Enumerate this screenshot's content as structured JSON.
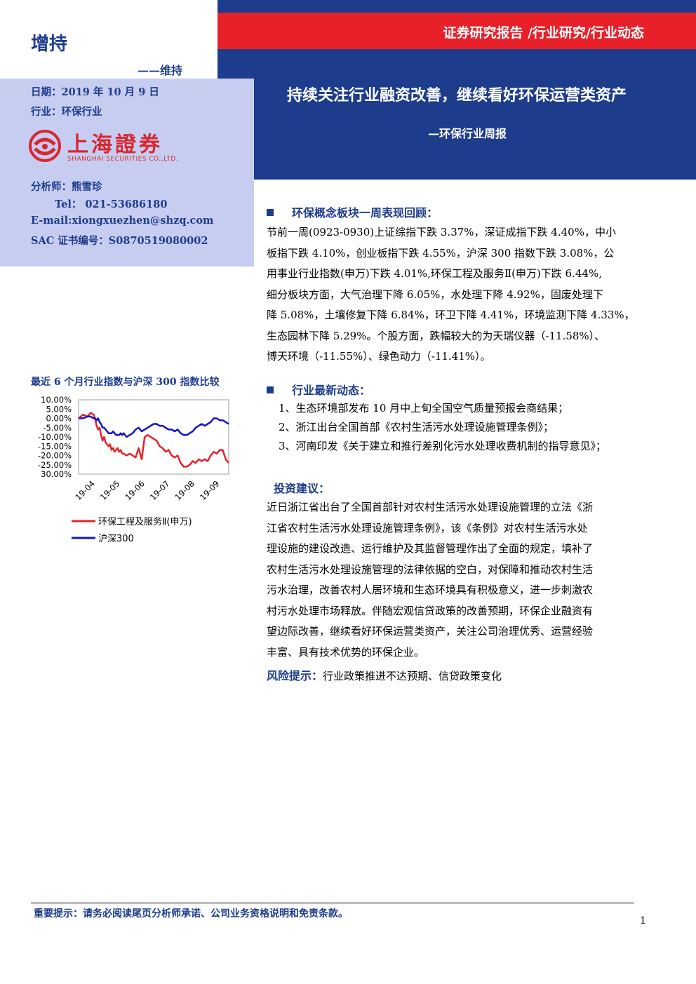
{
  "header": {
    "rating": "增持",
    "rating_sub": "——维持",
    "category": "证券研究报告 /行业研究/行业动态",
    "title": "持续关注行业融资改善，继续看好环保运营类资产",
    "subtitle": "—环保行业周报"
  },
  "info": {
    "date": "日期：2019 年 10 月 9 日",
    "industry": "行业：环保行业",
    "analyst": "分析师：熊雪珍",
    "tel": "Tel： 021-53686180",
    "email": "E-mail:xiongxuezhen@shzq.com",
    "sac": "SAC 证书编号：S0870519080002"
  },
  "logo": {
    "cn": "上海證券",
    "en": "SHANGHAI SECURITIES CO.,LTD."
  },
  "colors": {
    "brand_blue": "#1e3c8c",
    "brand_red": "#e8202a",
    "panel": "#c7cdf1",
    "series_red": "#e8202a",
    "series_blue": "#1414c8"
  },
  "chart_title": "最近 6 个月行业指数与沪深 300 指数比较",
  "chart_data": {
    "type": "line",
    "y_ticks": [
      "10.00%",
      "5.00%",
      "0.00%",
      "-5.00%",
      "-10.00%",
      "-15.00%",
      "-20.00%",
      "-25.00%",
      "30.00%"
    ],
    "x_ticks": [
      "19-04",
      "19-05",
      "19-06",
      "19-07",
      "19-08",
      "19-09"
    ],
    "ylim": [
      -30,
      10
    ],
    "ylabel": "",
    "xlabel": "",
    "legend_position": "bottom",
    "x": [
      0,
      3,
      6,
      8,
      10,
      11,
      12,
      13,
      14,
      15,
      16,
      17,
      18,
      19,
      20,
      21,
      22,
      23,
      24,
      25,
      26,
      27,
      28,
      29,
      30,
      32,
      34,
      36,
      38,
      40,
      42,
      44,
      46,
      48,
      50,
      52,
      54,
      56,
      58,
      60,
      62,
      64,
      66,
      68,
      70,
      72,
      74,
      76,
      78,
      80,
      82,
      84,
      86,
      88,
      90,
      92,
      94,
      96,
      98,
      100
    ],
    "series": [
      {
        "name": "环保工程及服务Ⅱ(申万)",
        "values": [
          0,
          2,
          1,
          3,
          2,
          0,
          -4,
          -6,
          -5,
          -9,
          -12,
          -10,
          -13,
          -14,
          -15,
          -14,
          -17,
          -16,
          -18,
          -17,
          -16,
          -18,
          -17,
          -19,
          -19,
          -20,
          -19,
          -20,
          -21,
          -16,
          -22,
          -10,
          -9,
          -10,
          -11,
          -12,
          -15,
          -16,
          -18,
          -17,
          -20,
          -21,
          -20,
          -24,
          -26,
          -26,
          -25,
          -23,
          -24,
          -22,
          -23,
          -22,
          -23,
          -20,
          -18,
          -19,
          -17,
          -17,
          -22,
          -24
        ]
      },
      {
        "name": "沪深300",
        "values": [
          0,
          0,
          1,
          1,
          0,
          0,
          -1,
          0,
          -2,
          -3,
          -5,
          -5,
          -6,
          -7,
          -8,
          -8,
          -8,
          -7,
          -8,
          -9,
          -9,
          -9,
          -8,
          -9,
          -8,
          -10,
          -9,
          -8,
          -6,
          -5,
          -7,
          -6,
          -5,
          -4,
          -3,
          -3,
          -4,
          -4,
          -5,
          -6,
          -6,
          -7,
          -6,
          -8,
          -9,
          -9,
          -8,
          -7,
          -5,
          -4,
          -3,
          -4,
          -3,
          -2,
          0,
          0,
          -1,
          -1,
          -2,
          -3
        ]
      }
    ]
  },
  "sections": {
    "review_title": "环保概念板块一周表现回顾：",
    "review_lines": [
      "节前一周(0923-0930)上证综指下跌 3.37%，深证成指下跌 4.40%，中小",
      "板指下跌 4.10%，创业板指下跌 4.55%，沪深 300 指数下跌 3.08%，公",
      "用事业行业指数(申万)下跌 4.01%,环保工程及服务Ⅱ(申万)下跌 6.44%,",
      "细分板块方面，大气治理下降 6.05%，水处理下降 4.92%，固废处理下",
      "降 5.08%，土壤修复下降 6.84%，环卫下降 4.41%，环境监测下降 4.33%，",
      "生态园林下降 5.29%。个股方面，跌幅较大的为天瑞仪器（-11.58%）、",
      "博天环境（-11.55%）、绿色动力（-11.41%）。"
    ],
    "news_title": "行业最新动态：",
    "news_items": [
      "1、生态环境部发布 10 月中上旬全国空气质量预报会商结果；",
      "2、浙江出台全国首部《农村生活污水处理设施管理条例》；",
      "3、河南印发《关于建立和推行差别化污水处理收费机制的指导意见》；"
    ],
    "advice_title": "投资建议：",
    "advice_lines": [
      "近日浙江省出台了全国首部针对农村生活污水处理设施管理的立法《浙",
      "江省农村生活污水处理设施管理条例》，该《条例》对农村生活污水处",
      "理设施的建设改造、运行维护及其监督管理作出了全面的规定，填补了",
      "农村生活污水处理设施管理的法律依据的空白，对保障和推动农村生活",
      "污水治理，改善农村人居环境和生态环境具有积极意义，进一步刺激农",
      "村污水处理市场释放。伴随宏观信贷政策的改善预期，环保企业融资有",
      "望边际改善，继续看好环保运营类资产，关注公司治理优秀、运营经验",
      "丰富、具有技术优势的环保企业。"
    ],
    "risk_label": "风险提示：",
    "risk_text": "行业政策推进不达预期、信贷政策变化"
  },
  "footer": {
    "note": "重要提示：请务必阅读尾页分析师承诺、公司业务资格说明和免责条款。",
    "page": "1"
  }
}
